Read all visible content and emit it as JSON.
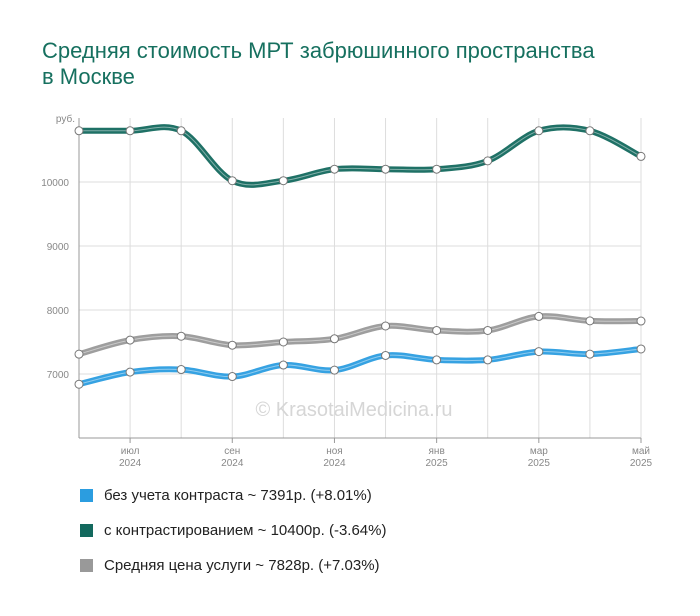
{
  "title": "Средняя стоимость МРТ забрюшинного пространства в Москве",
  "watermark": "© KrasotaiMedicina.ru",
  "colors": {
    "title": "#16705f",
    "grid": "#dddddd",
    "axis": "#999999",
    "tick_text": "#888888"
  },
  "legend": [
    {
      "label": "без учета контраста ~ 7391р. (+8.01%)",
      "color": "#2b9de0"
    },
    {
      "label": "с контрастированием ~ 10400р. (-3.64%)",
      "color": "#13695e"
    },
    {
      "label": "Средняя цена услуги ~ 7828р. (+7.03%)",
      "color": "#999999"
    }
  ],
  "chart_data": {
    "type": "line",
    "y_unit_label": "руб.",
    "ylim": [
      6000,
      11000
    ],
    "yticks": [
      7000,
      8000,
      9000,
      10000
    ],
    "x": [
      "2024-06",
      "2024-07",
      "2024-08",
      "2024-09",
      "2024-10",
      "2024-11",
      "2024-12",
      "2025-01",
      "2025-02",
      "2025-03",
      "2025-04",
      "2025-05"
    ],
    "x_tick_labels": [
      {
        "month": "июл",
        "year": "2024",
        "index": 1
      },
      {
        "month": "сен",
        "year": "2024",
        "index": 3
      },
      {
        "month": "ноя",
        "year": "2024",
        "index": 5
      },
      {
        "month": "янв",
        "year": "2025",
        "index": 7
      },
      {
        "month": "мар",
        "year": "2025",
        "index": 9
      },
      {
        "month": "май",
        "year": "2025",
        "index": 11
      }
    ],
    "grid": true,
    "legend_position": "bottom",
    "series": [
      {
        "name": "с контрастированием",
        "color": "#13695e",
        "values": [
          10800,
          10800,
          10800,
          10020,
          10020,
          10200,
          10200,
          10200,
          10330,
          10800,
          10800,
          10400
        ]
      },
      {
        "name": "Средняя цена услуги",
        "color": "#999999",
        "values": [
          7310,
          7530,
          7590,
          7450,
          7500,
          7550,
          7750,
          7680,
          7680,
          7900,
          7830,
          7828
        ]
      },
      {
        "name": "без учета контраста",
        "color": "#2b9de0",
        "values": [
          6840,
          7030,
          7070,
          6960,
          7140,
          7060,
          7290,
          7220,
          7220,
          7350,
          7310,
          7391
        ]
      }
    ]
  }
}
